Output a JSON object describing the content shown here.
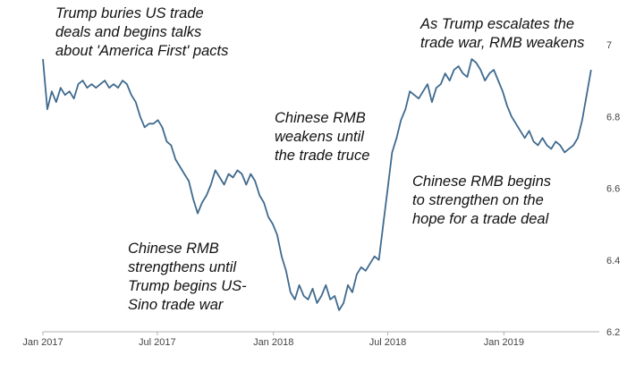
{
  "chart_data": {
    "type": "line",
    "title": "",
    "xlabel": "",
    "ylabel": "",
    "grid": false,
    "legend": "none",
    "ylim": [
      6.2,
      7.0
    ],
    "xlim": [
      "2017-01-01",
      "2019-06-01"
    ],
    "x_ticks": [
      {
        "value": "2017-01-01",
        "label": "Jan 2017"
      },
      {
        "value": "2017-07-01",
        "label": "Jul 2017"
      },
      {
        "value": "2018-01-01",
        "label": "Jan 2018"
      },
      {
        "value": "2018-07-01",
        "label": "Jul 2018"
      },
      {
        "value": "2019-01-01",
        "label": "Jan 2019"
      }
    ],
    "y_ticks": [
      {
        "value": 6.2,
        "label": "6.2"
      },
      {
        "value": 6.4,
        "label": "6.4"
      },
      {
        "value": 6.6,
        "label": "6.6"
      },
      {
        "value": 6.8,
        "label": "6.8"
      },
      {
        "value": 7.0,
        "label": "7"
      }
    ],
    "colors": {
      "line": "#3f6a8e",
      "axis": "#b0b0b0"
    },
    "series": [
      {
        "x": [
          "2017-01-01",
          "2017-01-08",
          "2017-01-15",
          "2017-01-22",
          "2017-01-29",
          "2017-02-05",
          "2017-02-12",
          "2017-02-19",
          "2017-02-26",
          "2017-03-05",
          "2017-03-12",
          "2017-03-19",
          "2017-03-26",
          "2017-04-02",
          "2017-04-09",
          "2017-04-16",
          "2017-04-23",
          "2017-04-30",
          "2017-05-07",
          "2017-05-14",
          "2017-05-21",
          "2017-05-28",
          "2017-06-04",
          "2017-06-11",
          "2017-06-18",
          "2017-06-25",
          "2017-07-02",
          "2017-07-09",
          "2017-07-16",
          "2017-07-23",
          "2017-07-30",
          "2017-08-06",
          "2017-08-13",
          "2017-08-20",
          "2017-08-27",
          "2017-09-03",
          "2017-09-10",
          "2017-09-17",
          "2017-09-24",
          "2017-10-01",
          "2017-10-08",
          "2017-10-15",
          "2017-10-22",
          "2017-10-29",
          "2017-11-05",
          "2017-11-12",
          "2017-11-19",
          "2017-11-26",
          "2017-12-03",
          "2017-12-10",
          "2017-12-17",
          "2017-12-24",
          "2017-12-31",
          "2018-01-07",
          "2018-01-14",
          "2018-01-21",
          "2018-01-28",
          "2018-02-04",
          "2018-02-11",
          "2018-02-18",
          "2018-02-25",
          "2018-03-04",
          "2018-03-11",
          "2018-03-18",
          "2018-03-25",
          "2018-04-01",
          "2018-04-08",
          "2018-04-15",
          "2018-04-22",
          "2018-04-29",
          "2018-05-06",
          "2018-05-13",
          "2018-05-20",
          "2018-05-27",
          "2018-06-03",
          "2018-06-10",
          "2018-06-17",
          "2018-06-24",
          "2018-07-01",
          "2018-07-08",
          "2018-07-15",
          "2018-07-22",
          "2018-07-29",
          "2018-08-05",
          "2018-08-12",
          "2018-08-19",
          "2018-08-26",
          "2018-09-02",
          "2018-09-09",
          "2018-09-16",
          "2018-09-23",
          "2018-09-30",
          "2018-10-07",
          "2018-10-14",
          "2018-10-21",
          "2018-10-28",
          "2018-11-04",
          "2018-11-11",
          "2018-11-18",
          "2018-11-25",
          "2018-12-02",
          "2018-12-09",
          "2018-12-16",
          "2018-12-23",
          "2018-12-30",
          "2019-01-06",
          "2019-01-13",
          "2019-01-20",
          "2019-01-27",
          "2019-02-03",
          "2019-02-10",
          "2019-02-17",
          "2019-02-24",
          "2019-03-03",
          "2019-03-10",
          "2019-03-17",
          "2019-03-24",
          "2019-03-31",
          "2019-04-07",
          "2019-04-14",
          "2019-04-21",
          "2019-04-28",
          "2019-05-05",
          "2019-05-12",
          "2019-05-19"
        ],
        "values": [
          6.96,
          6.82,
          6.87,
          6.84,
          6.88,
          6.86,
          6.87,
          6.85,
          6.89,
          6.9,
          6.88,
          6.89,
          6.88,
          6.89,
          6.9,
          6.88,
          6.89,
          6.88,
          6.9,
          6.89,
          6.86,
          6.84,
          6.8,
          6.77,
          6.78,
          6.78,
          6.79,
          6.77,
          6.73,
          6.72,
          6.68,
          6.66,
          6.64,
          6.62,
          6.57,
          6.53,
          6.56,
          6.58,
          6.61,
          6.65,
          6.63,
          6.61,
          6.64,
          6.63,
          6.65,
          6.64,
          6.61,
          6.64,
          6.62,
          6.58,
          6.56,
          6.52,
          6.5,
          6.47,
          6.41,
          6.37,
          6.31,
          6.29,
          6.33,
          6.3,
          6.29,
          6.32,
          6.28,
          6.3,
          6.33,
          6.29,
          6.3,
          6.26,
          6.28,
          6.33,
          6.31,
          6.36,
          6.38,
          6.37,
          6.39,
          6.41,
          6.4,
          6.5,
          6.6,
          6.7,
          6.74,
          6.79,
          6.82,
          6.87,
          6.86,
          6.85,
          6.87,
          6.89,
          6.84,
          6.88,
          6.89,
          6.92,
          6.9,
          6.93,
          6.94,
          6.92,
          6.91,
          6.96,
          6.95,
          6.93,
          6.9,
          6.92,
          6.93,
          6.9,
          6.87,
          6.83,
          6.8,
          6.78,
          6.76,
          6.74,
          6.76,
          6.73,
          6.72,
          6.74,
          6.72,
          6.71,
          6.73,
          6.72,
          6.7,
          6.71,
          6.72,
          6.74,
          6.79,
          6.86,
          6.93
        ]
      }
    ],
    "annotations": [
      {
        "lines": [
          "Trump buries US trade",
          "deals and begins talks",
          "about 'America First' pacts"
        ]
      },
      {
        "lines": [
          "Chinese RMB",
          "strengthens until",
          "Trump begins US-",
          "Sino trade war"
        ]
      },
      {
        "lines": [
          "Chinese RMB",
          "weakens until",
          "the trade truce"
        ]
      },
      {
        "lines": [
          "As Trump escalates the",
          "trade war, RMB weakens"
        ]
      },
      {
        "lines": [
          "Chinese RMB begins",
          "to strengthen on the",
          "hope for a trade deal"
        ]
      }
    ]
  }
}
